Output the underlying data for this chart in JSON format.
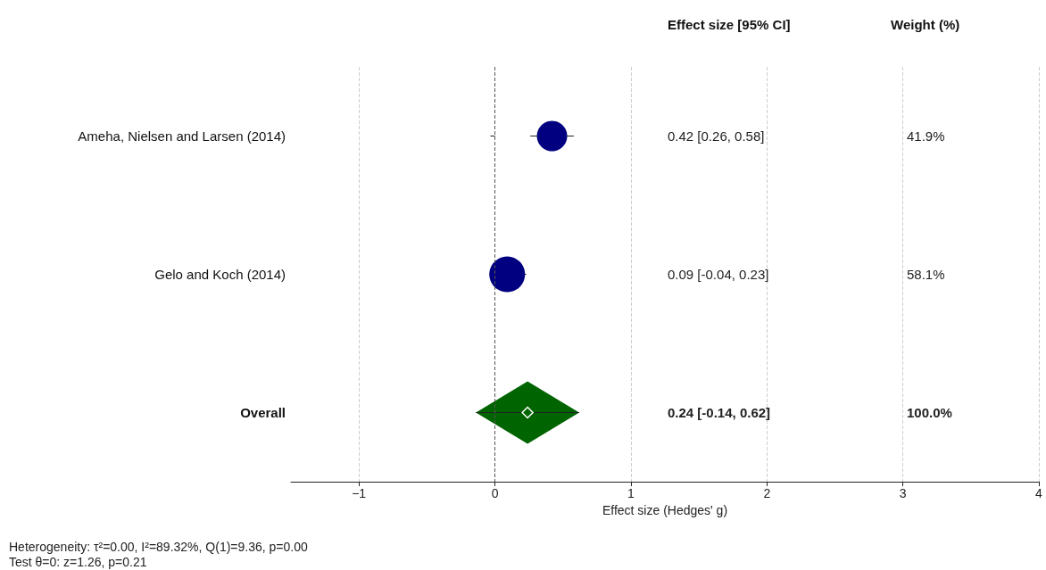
{
  "chart_data": {
    "type": "scatter",
    "orientation": "horizontal",
    "xlabel": "Effect size (Hedges' g)",
    "categories": [
      "Ameha, Nielsen and Larsen (2014)",
      "Gelo and Koch (2014)",
      "Overall"
    ],
    "series": [
      {
        "type": "bubble",
        "color": "#000080",
        "marker": "circle",
        "values": [
          0.42,
          0.09,
          null
        ],
        "errors": [
          [
            0.26,
            0.58
          ],
          [
            -0.04,
            0.23
          ],
          null
        ],
        "sizes": [
          0.72,
          1,
          null
        ]
      },
      {
        "color": "#006400",
        "marker": "diamond",
        "values": [
          null,
          null,
          0.24
        ],
        "errors": [
          null,
          null,
          [
            -0.14,
            0.62
          ]
        ]
      }
    ],
    "xlim": [
      -1.5,
      4
    ],
    "xticks": [
      {
        "value": -1,
        "label": "−1"
      },
      0,
      1,
      2,
      3,
      4
    ],
    "grid": "x",
    "ref_lines": [
      {
        "axis": "x",
        "value": 0,
        "color": "#555555",
        "line_style": "dashed"
      }
    ],
    "annotations": [
      "Effect size [95% CI]",
      "Weight (%)",
      "0.42 [0.26, 0.58]",
      "41.9%",
      "0.09 [-0.04, 0.23]",
      "58.1%",
      "0.24 [-0.14, 0.62]",
      "100.0%",
      "Heterogeneity: τ²=0.00, I²=89.32%, Q(1)=9.36, p=0.00",
      "Test θ=0: z=1.26, p=0.21"
    ]
  }
}
